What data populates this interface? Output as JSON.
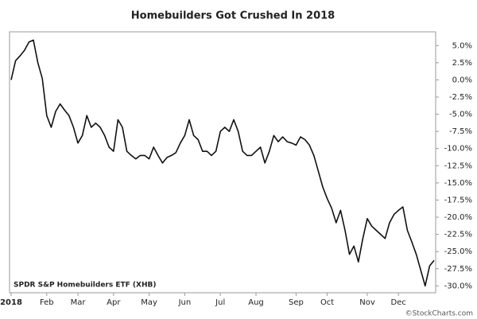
{
  "chart_data": {
    "type": "line",
    "title": "Homebuilders Got Crushed In 2018",
    "annotation": "SPDR S&P Homebuilders ETF (XHB)",
    "source": "©StockCharts.com",
    "categories": [
      "2018",
      null,
      null,
      null,
      null,
      null,
      null,
      null,
      "Feb",
      null,
      null,
      null,
      null,
      null,
      null,
      "Mar",
      null,
      null,
      null,
      null,
      null,
      null,
      null,
      "Apr",
      null,
      null,
      null,
      null,
      null,
      null,
      null,
      "May",
      null,
      null,
      null,
      null,
      null,
      null,
      null,
      "Jun",
      null,
      null,
      null,
      null,
      null,
      null,
      null,
      "Jul",
      null,
      null,
      null,
      null,
      null,
      null,
      null,
      "Aug",
      null,
      null,
      null,
      null,
      null,
      null,
      null,
      null,
      "Sep",
      null,
      null,
      null,
      null,
      null,
      null,
      "Oct",
      null,
      null,
      null,
      null,
      null,
      null,
      null,
      null,
      "Nov",
      null,
      null,
      null,
      null,
      null,
      null,
      "Dec",
      null,
      null,
      null,
      null,
      null,
      null,
      null,
      null
    ],
    "series": [
      {
        "name": "SPDR S&P Homebuilders ETF (XHB)",
        "color": "#111111",
        "values": [
          0,
          2.8,
          3.5,
          4.3,
          5.5,
          5.8,
          2.5,
          0.2,
          -5.2,
          -6.9,
          -4.6,
          -3.5,
          -4.4,
          -5.2,
          -6.9,
          -9.2,
          -8.1,
          -5.2,
          -6.9,
          -6.3,
          -6.9,
          -8.1,
          -9.8,
          -10.4,
          -5.8,
          -6.9,
          -10.4,
          -11.0,
          -11.5,
          -11.0,
          -11.0,
          -11.5,
          -9.8,
          -11.0,
          -12.1,
          -11.3,
          -11.0,
          -10.6,
          -9.2,
          -8.1,
          -5.8,
          -8.1,
          -8.7,
          -10.4,
          -10.4,
          -11.0,
          -10.4,
          -7.5,
          -6.9,
          -7.5,
          -5.8,
          -7.5,
          -10.4,
          -11.0,
          -11.0,
          -10.4,
          -9.8,
          -12.1,
          -10.4,
          -8.1,
          -9.0,
          -8.3,
          -9.0,
          -9.2,
          -9.5,
          -8.3,
          -8.7,
          -9.5,
          -11.0,
          -13.3,
          -15.6,
          -17.3,
          -18.7,
          -20.8,
          -19.0,
          -21.9,
          -25.4,
          -24.2,
          -26.5,
          -23.1,
          -20.2,
          -21.3,
          -21.9,
          -22.5,
          -23.1,
          -20.8,
          -19.6,
          -19.0,
          -18.5,
          -21.9,
          -23.6,
          -25.4,
          -27.7,
          -30.0,
          -27.1,
          -26.3
        ]
      }
    ],
    "ylim": [
      -31,
      7
    ],
    "yticks": [
      {
        "value": 5,
        "label": "5.0%"
      },
      {
        "value": 2.5,
        "label": "2.5%"
      },
      {
        "value": 0,
        "label": "0.0%"
      },
      {
        "value": -2.5,
        "label": "-2.5%"
      },
      {
        "value": -5,
        "label": "-5.0%"
      },
      {
        "value": -7.5,
        "label": "-7.5%"
      },
      {
        "value": -10,
        "label": "-10.0%"
      },
      {
        "value": -12.5,
        "label": "-12.5%"
      },
      {
        "value": -15,
        "label": "-15.0%"
      },
      {
        "value": -17.5,
        "label": "-17.5%"
      },
      {
        "value": -20,
        "label": "-20.0%"
      },
      {
        "value": -22.5,
        "label": "-22.5%"
      },
      {
        "value": -25,
        "label": "-25.0%"
      },
      {
        "value": -27.5,
        "label": "-27.5%"
      },
      {
        "value": -30,
        "label": "-30.0%"
      }
    ],
    "grid": false
  }
}
